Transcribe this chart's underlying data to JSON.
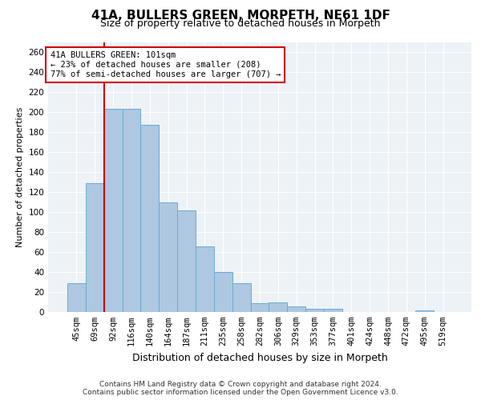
{
  "title": "41A, BULLERS GREEN, MORPETH, NE61 1DF",
  "subtitle": "Size of property relative to detached houses in Morpeth",
  "xlabel": "Distribution of detached houses by size in Morpeth",
  "ylabel": "Number of detached properties",
  "categories": [
    "45sqm",
    "69sqm",
    "92sqm",
    "116sqm",
    "140sqm",
    "164sqm",
    "187sqm",
    "211sqm",
    "235sqm",
    "258sqm",
    "282sqm",
    "306sqm",
    "329sqm",
    "353sqm",
    "377sqm",
    "401sqm",
    "424sqm",
    "448sqm",
    "472sqm",
    "495sqm",
    "519sqm"
  ],
  "values": [
    29,
    129,
    203,
    203,
    187,
    110,
    102,
    66,
    40,
    29,
    9,
    10,
    6,
    3,
    3,
    0,
    0,
    0,
    0,
    2,
    0
  ],
  "bar_color": "#adc8e0",
  "bar_edge_color": "#6aaad4",
  "vline_color": "#cc0000",
  "vline_x_index": 2,
  "annotation_text": "41A BULLERS GREEN: 101sqm\n← 23% of detached houses are smaller (208)\n77% of semi-detached houses are larger (707) →",
  "annotation_box_color": "#ffffff",
  "annotation_box_edge": "#cc0000",
  "ylim": [
    0,
    270
  ],
  "yticks": [
    0,
    20,
    40,
    60,
    80,
    100,
    120,
    140,
    160,
    180,
    200,
    220,
    240,
    260
  ],
  "background_color": "#edf2f7",
  "footer_text": "Contains HM Land Registry data © Crown copyright and database right 2024.\nContains public sector information licensed under the Open Government Licence v3.0.",
  "title_fontsize": 11,
  "subtitle_fontsize": 9,
  "ylabel_fontsize": 8,
  "xlabel_fontsize": 9,
  "tick_fontsize": 7.5,
  "annotation_fontsize": 7.5,
  "footer_fontsize": 6.5
}
